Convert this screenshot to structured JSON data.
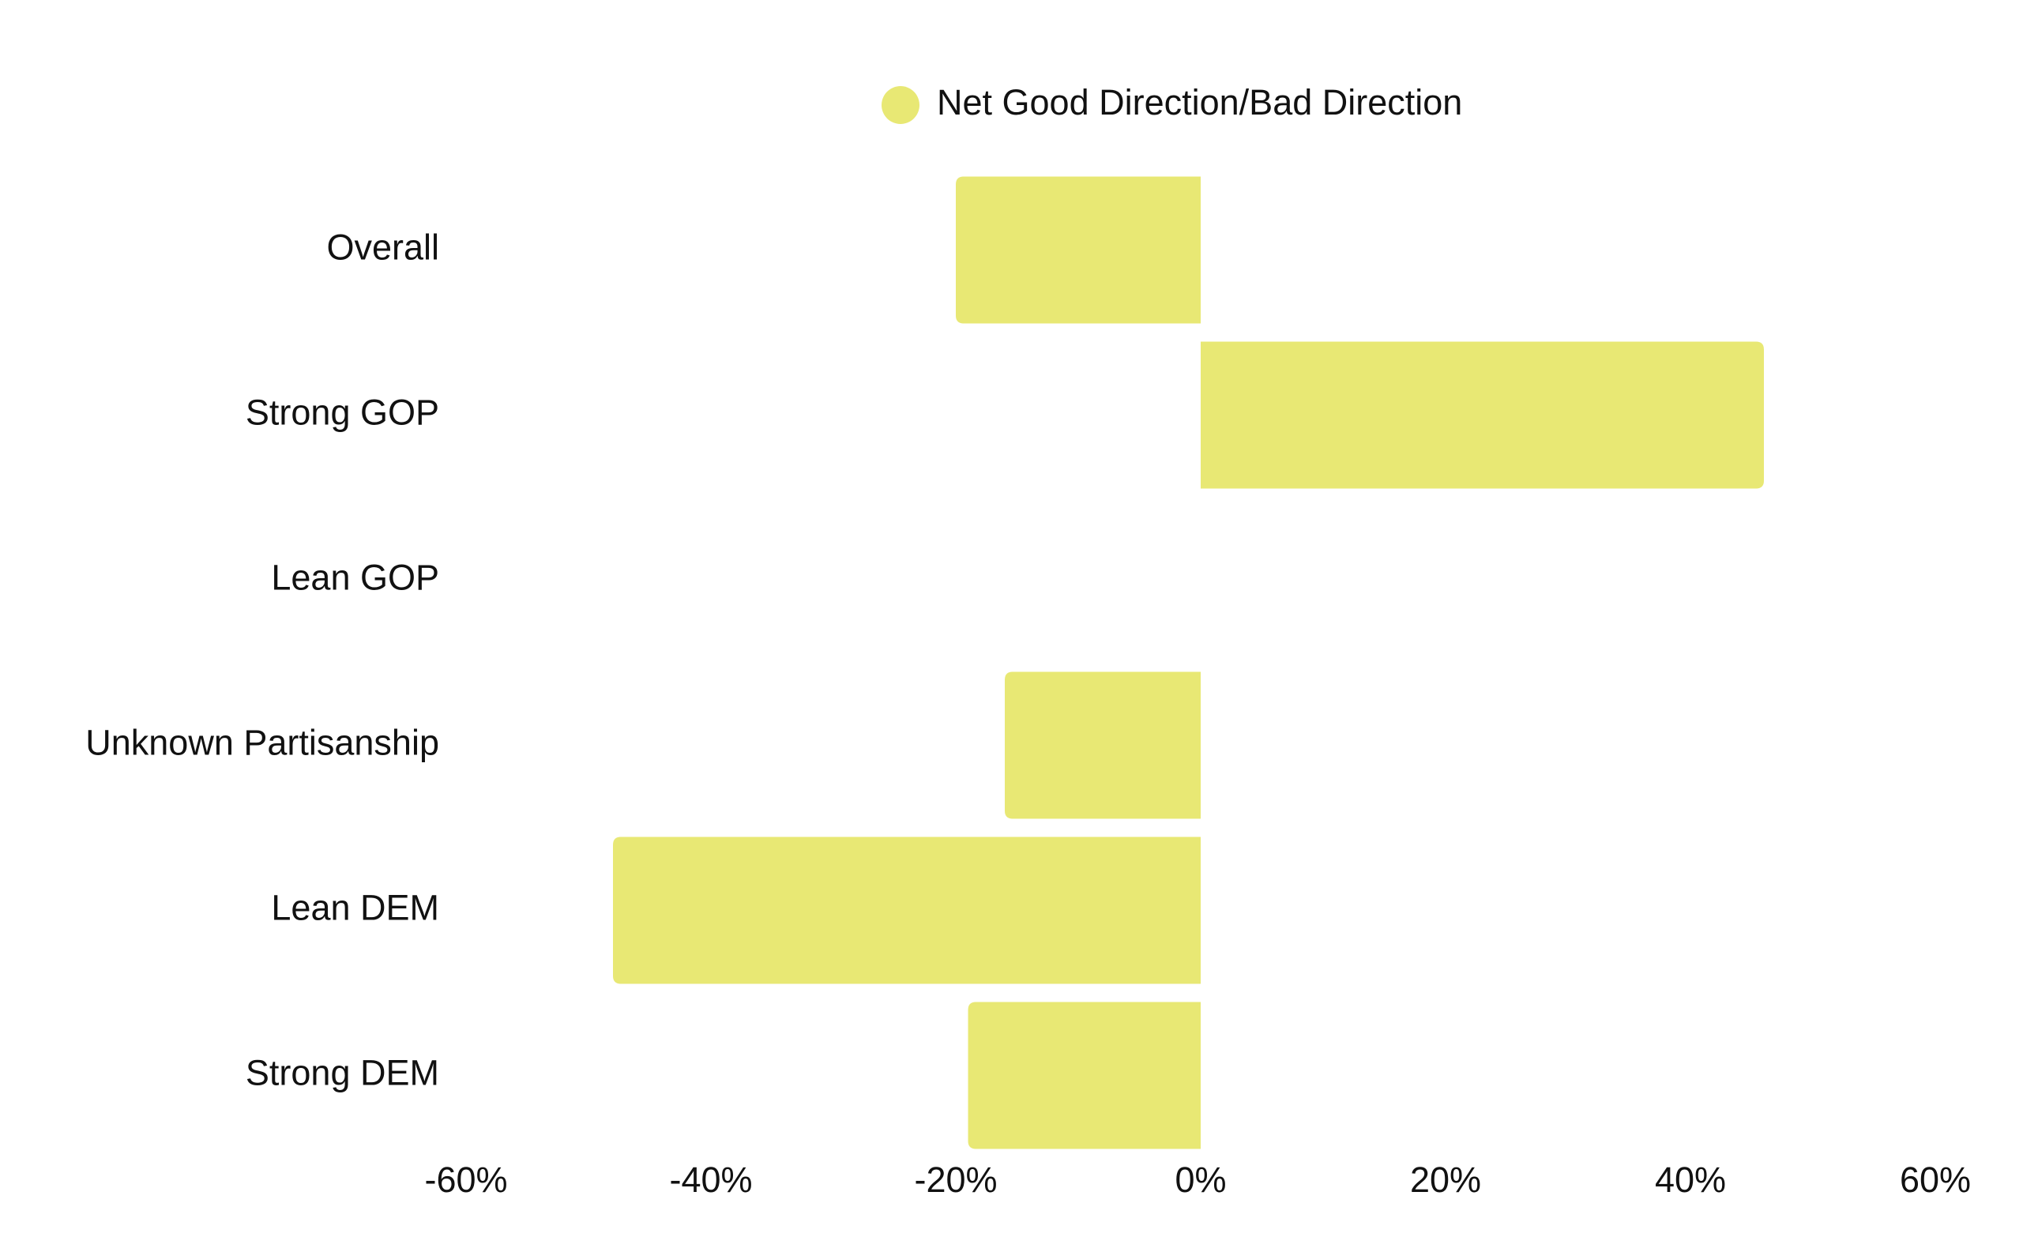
{
  "colors": {
    "bar": "#e8e874",
    "text": "#111111",
    "background": "#ffffff"
  },
  "legend": {
    "label": "Net Good Direction/Bad Direction",
    "placement": "top-center"
  },
  "chart_data": {
    "type": "bar",
    "orientation": "horizontal",
    "categories": [
      "Overall",
      "Strong GOP",
      "Lean GOP",
      "Unknown Partisanship",
      "Lean DEM",
      "Strong DEM"
    ],
    "series": [
      {
        "name": "Net Good Direction/Bad Direction",
        "values": [
          -20,
          46,
          0,
          -16,
          -48,
          -19
        ]
      }
    ],
    "xlim": [
      -60,
      60
    ],
    "xticks": [
      -60,
      -40,
      -20,
      0,
      20,
      40,
      60
    ],
    "xtick_labels": [
      "-60%",
      "-40%",
      "-20%",
      "0%",
      "20%",
      "40%",
      "60%"
    ],
    "grid": false,
    "title": "",
    "xlabel": "",
    "ylabel": ""
  }
}
